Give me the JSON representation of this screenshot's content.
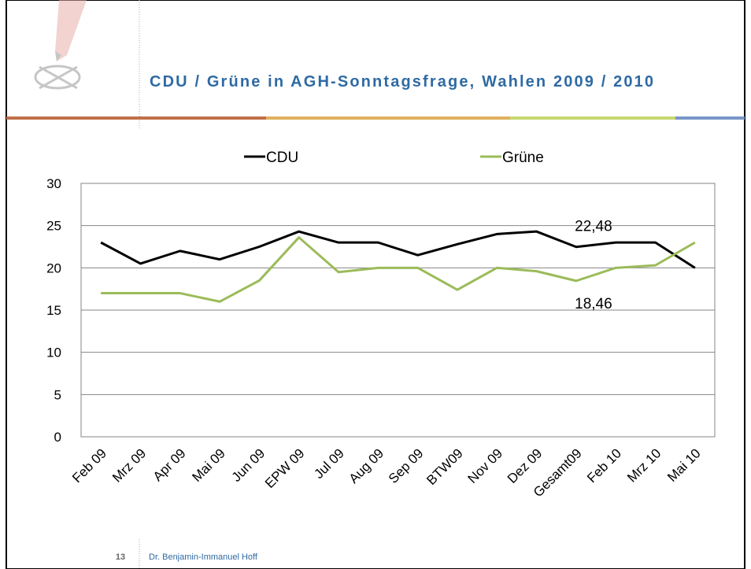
{
  "slide_number": 13,
  "author": "Dr. Benjamin-Immanuel Hoff",
  "chart_data": {
    "type": "line",
    "title": "CDU / Grüne in AGH-Sonntagsfrage, Wahlen 2009 / 2010",
    "categories": [
      "Feb 09",
      "Mrz 09",
      "Apr 09",
      "Mai 09",
      "Jun 09",
      "EPW 09",
      "Jul 09",
      "Aug 09",
      "Sep 09",
      "BTW09",
      "Nov 09",
      "Dez 09",
      "Gesamt09",
      "Feb 10",
      "Mrz 10",
      "Mai 10"
    ],
    "series": [
      {
        "name": "CDU",
        "color": "#000000",
        "values": [
          23,
          20.5,
          22,
          21,
          22.5,
          24.3,
          23,
          23,
          21.5,
          22.8,
          24,
          24.3,
          22.48,
          23,
          23,
          20
        ],
        "value_labels": [
          null,
          null,
          null,
          null,
          null,
          null,
          null,
          null,
          null,
          null,
          null,
          null,
          "22,48",
          null,
          null,
          null
        ]
      },
      {
        "name": "Grüne",
        "color": "#9bbb59",
        "values": [
          17,
          17,
          17,
          16,
          18.5,
          23.6,
          19.5,
          20,
          20,
          17.4,
          20,
          19.6,
          18.46,
          20,
          20.3,
          23
        ],
        "value_labels": [
          null,
          null,
          null,
          null,
          null,
          null,
          null,
          null,
          null,
          null,
          null,
          null,
          "18,46",
          null,
          null,
          null
        ]
      }
    ],
    "ylim": [
      0,
      30
    ],
    "yticks": [
      0,
      5,
      10,
      15,
      20,
      25,
      30
    ],
    "grid": true,
    "legend": "top"
  }
}
